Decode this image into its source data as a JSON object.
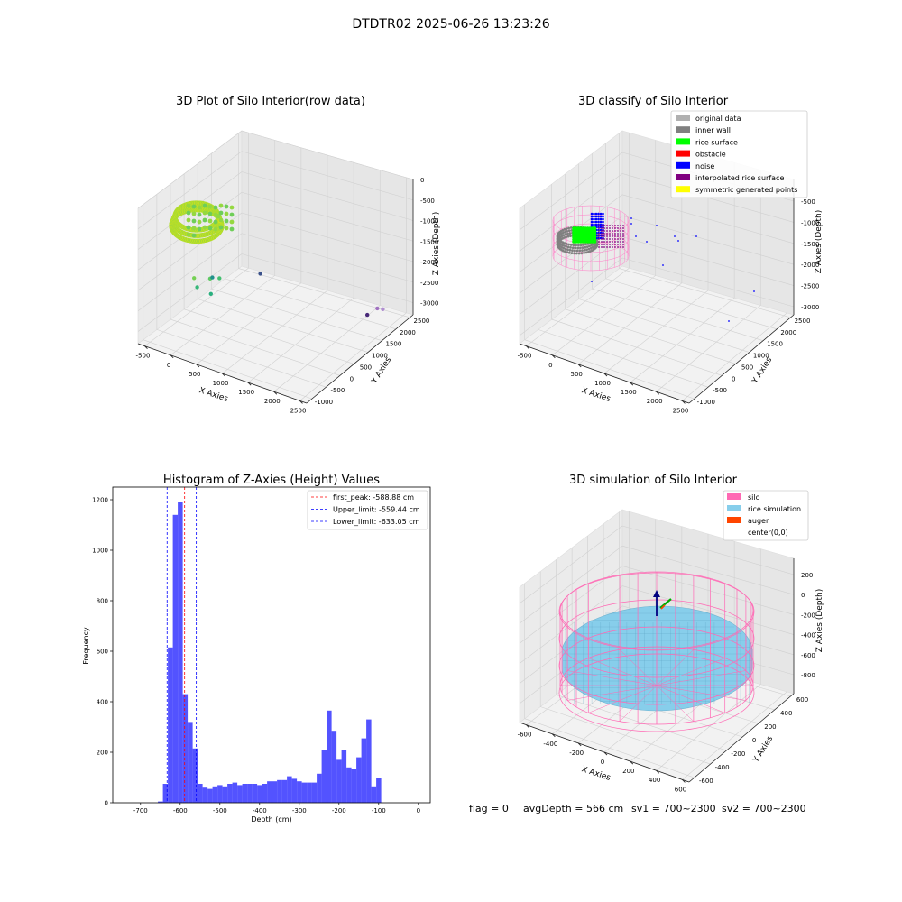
{
  "figure": {
    "suptitle": "DTDTR02 2025-06-26 13:23:26",
    "footer": {
      "flag": "flag = 0",
      "avg": "avgDepth = 566 cm",
      "sv1": "sv1 = 700~2300",
      "sv2": "sv2 = 700~2300"
    }
  },
  "chart_data": [
    {
      "type": "scatter",
      "projection": "3d",
      "title": "3D Plot of Silo Interior(row data)",
      "xlabel": "X Axies",
      "ylabel": "Y Axies",
      "zlabel": "Z Axies (Depth)",
      "xticks": [
        "-500",
        "0",
        "500",
        "1000",
        "1500",
        "2000",
        "2500"
      ],
      "yticks": [
        "-1000",
        "-500",
        "0",
        "500",
        "1000",
        "1500",
        "2000",
        "2500"
      ],
      "zticks": [
        "0",
        "-500",
        "-1000",
        "-1500",
        "-2000",
        "-2500",
        "-3000"
      ],
      "xlim": [
        -600,
        2600
      ],
      "ylim": [
        -1000,
        2600
      ],
      "zlim": [
        -3200,
        100
      ],
      "colormap": "viridis",
      "outliers": [
        {
          "x": 300,
          "y": -700,
          "z": -1350
        },
        {
          "x": 550,
          "y": -600,
          "z": -1300
        },
        {
          "x": 700,
          "y": -550,
          "z": -1250
        },
        {
          "x": 250,
          "y": -500,
          "z": -1700
        },
        {
          "x": 400,
          "y": -300,
          "z": -1900
        },
        {
          "x": 100,
          "y": 300,
          "z": -1950
        },
        {
          "x": 900,
          "y": 500,
          "z": -1600
        },
        {
          "x": 2300,
          "y": 2000,
          "z": -2600
        },
        {
          "x": 2350,
          "y": 2100,
          "z": -2650
        },
        {
          "x": 2000,
          "y": 2200,
          "z": -3000
        }
      ]
    },
    {
      "type": "scatter",
      "projection": "3d",
      "title": "3D classify of Silo Interior",
      "xlabel": "X Axies",
      "ylabel": "Y Axies",
      "zlabel": "Z Axies (Depth)",
      "xticks": [
        "-500",
        "0",
        "500",
        "1000",
        "1500",
        "2000",
        "2500"
      ],
      "yticks": [
        "-1000",
        "-500",
        "0",
        "500",
        "1000",
        "1500",
        "2000",
        "2500"
      ],
      "zticks": [
        "-500",
        "-1000",
        "-1500",
        "-2000",
        "-2500",
        "-3000"
      ],
      "xlim": [
        -600,
        2600
      ],
      "ylim": [
        -1000,
        2600
      ],
      "zlim": [
        -3200,
        100
      ],
      "legend_position": "upper-right",
      "legend": [
        {
          "label": "original data",
          "color": "#b0b0b0"
        },
        {
          "label": "inner wall",
          "color": "#808080"
        },
        {
          "label": "rice surface",
          "color": "#00ff00"
        },
        {
          "label": "obstacle",
          "color": "#ff0000"
        },
        {
          "label": "noise",
          "color": "#0000ff"
        },
        {
          "label": "interpolated rice surface",
          "color": "#800080"
        },
        {
          "label": "symmetric generated points",
          "color": "#ffff00"
        }
      ]
    },
    {
      "type": "bar",
      "title": "Histogram of Z-Axies (Height) Values",
      "xlabel": "Depth (cm)",
      "ylabel": "Frequency",
      "xlim": [
        -770,
        30
      ],
      "ylim": [
        0,
        1250
      ],
      "xticks": [
        -700,
        -600,
        -500,
        -400,
        -300,
        -200,
        -100,
        0
      ],
      "yticks": [
        0,
        200,
        400,
        600,
        800,
        1000,
        1200
      ],
      "bar_color": "#4444ff",
      "bin_width": 12.5,
      "bins": [
        {
          "x": -650,
          "count": 5
        },
        {
          "x": -637.5,
          "count": 75
        },
        {
          "x": -625,
          "count": 615
        },
        {
          "x": -612.5,
          "count": 1140
        },
        {
          "x": -600,
          "count": 1190
        },
        {
          "x": -587.5,
          "count": 430
        },
        {
          "x": -575,
          "count": 320
        },
        {
          "x": -562.5,
          "count": 215
        },
        {
          "x": -550,
          "count": 75
        },
        {
          "x": -537.5,
          "count": 60
        },
        {
          "x": -525,
          "count": 55
        },
        {
          "x": -512.5,
          "count": 65
        },
        {
          "x": -500,
          "count": 70
        },
        {
          "x": -487.5,
          "count": 65
        },
        {
          "x": -475,
          "count": 75
        },
        {
          "x": -462.5,
          "count": 80
        },
        {
          "x": -450,
          "count": 70
        },
        {
          "x": -437.5,
          "count": 75
        },
        {
          "x": -425,
          "count": 75
        },
        {
          "x": -412.5,
          "count": 75
        },
        {
          "x": -400,
          "count": 70
        },
        {
          "x": -387.5,
          "count": 75
        },
        {
          "x": -375,
          "count": 85
        },
        {
          "x": -362.5,
          "count": 85
        },
        {
          "x": -350,
          "count": 90
        },
        {
          "x": -337.5,
          "count": 90
        },
        {
          "x": -325,
          "count": 105
        },
        {
          "x": -312.5,
          "count": 95
        },
        {
          "x": -300,
          "count": 85
        },
        {
          "x": -287.5,
          "count": 80
        },
        {
          "x": -275,
          "count": 80
        },
        {
          "x": -262.5,
          "count": 80
        },
        {
          "x": -250,
          "count": 115
        },
        {
          "x": -237.5,
          "count": 210
        },
        {
          "x": -225,
          "count": 365
        },
        {
          "x": -212.5,
          "count": 285
        },
        {
          "x": -200,
          "count": 170
        },
        {
          "x": -187.5,
          "count": 210
        },
        {
          "x": -175,
          "count": 140
        },
        {
          "x": -162.5,
          "count": 135
        },
        {
          "x": -150,
          "count": 180
        },
        {
          "x": -137.5,
          "count": 255
        },
        {
          "x": -125,
          "count": 330
        },
        {
          "x": -112.5,
          "count": 65
        },
        {
          "x": -100,
          "count": 100
        }
      ],
      "vlines": [
        {
          "label": "first_peak: -588.88 cm",
          "x": -588.88,
          "color": "#ff0000"
        },
        {
          "label": "Upper_limit: -559.44 cm",
          "x": -559.44,
          "color": "#0000ff"
        },
        {
          "label": "Lower_limit: -633.05 cm",
          "x": -633.05,
          "color": "#0000ff"
        }
      ],
      "legend_position": "upper-right"
    },
    {
      "type": "surface",
      "projection": "3d",
      "title": "3D simulation of Silo Interior",
      "xlabel": "X Axies",
      "ylabel": "Y Axies",
      "zlabel": "Z Axies (Depth)",
      "xticks": [
        "-600",
        "-400",
        "-200",
        "0",
        "200",
        "400",
        "600"
      ],
      "yticks": [
        "-600",
        "-400",
        "-200",
        "0",
        "200",
        "400",
        "600"
      ],
      "zticks": [
        "200",
        "0",
        "-200",
        "-400",
        "-600",
        "-800"
      ],
      "xlim": [
        -650,
        650
      ],
      "ylim": [
        -650,
        650
      ],
      "zlim": [
        -950,
        300
      ],
      "legend_position": "upper-right",
      "legend": [
        {
          "label": "silo",
          "color": "#ff69b4"
        },
        {
          "label": "rice simulation",
          "color": "#87ceeb"
        },
        {
          "label": "auger",
          "color": "#ff4500"
        },
        {
          "label": "center(0,0)",
          "color": ""
        }
      ]
    }
  ]
}
